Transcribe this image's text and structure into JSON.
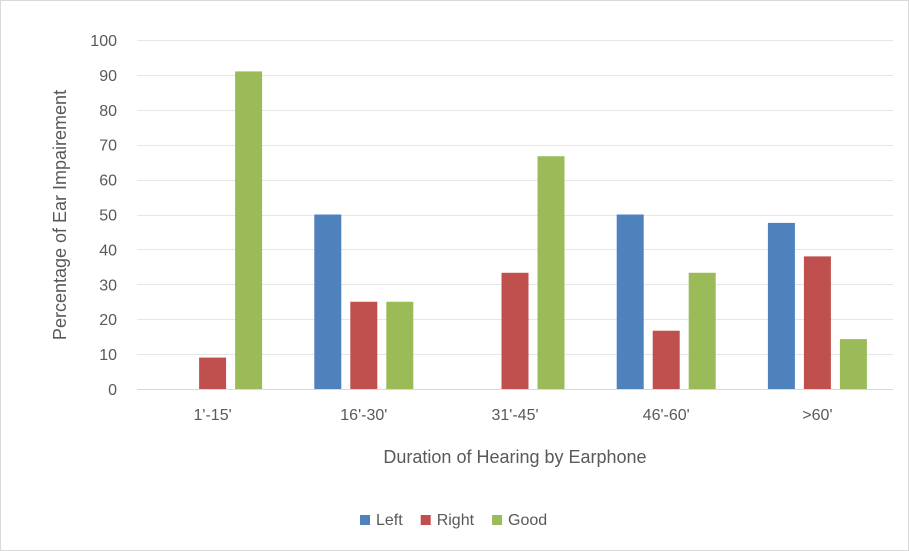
{
  "chart_data": {
    "type": "bar",
    "title": "",
    "xlabel": "Duration of Hearing by Earphone",
    "ylabel": "Percentage of Ear Impairement",
    "categories": [
      "1'-15'",
      "16'-30'",
      "31'-45'",
      "46'-60'",
      ">60'"
    ],
    "series": [
      {
        "name": "Left",
        "color": "#4f81bd",
        "values": [
          0,
          50,
          0,
          50,
          47.6
        ]
      },
      {
        "name": "Right",
        "color": "#c0504d",
        "values": [
          9,
          25,
          33.3,
          16.7,
          38
        ]
      },
      {
        "name": "Good",
        "color": "#9bbb59",
        "values": [
          91,
          25,
          66.7,
          33.3,
          14.3
        ]
      }
    ],
    "ylim": [
      0,
      100
    ],
    "yticks": [
      0,
      10,
      20,
      30,
      40,
      50,
      60,
      70,
      80,
      90,
      100
    ],
    "grid": true,
    "legend_position": "bottom"
  }
}
